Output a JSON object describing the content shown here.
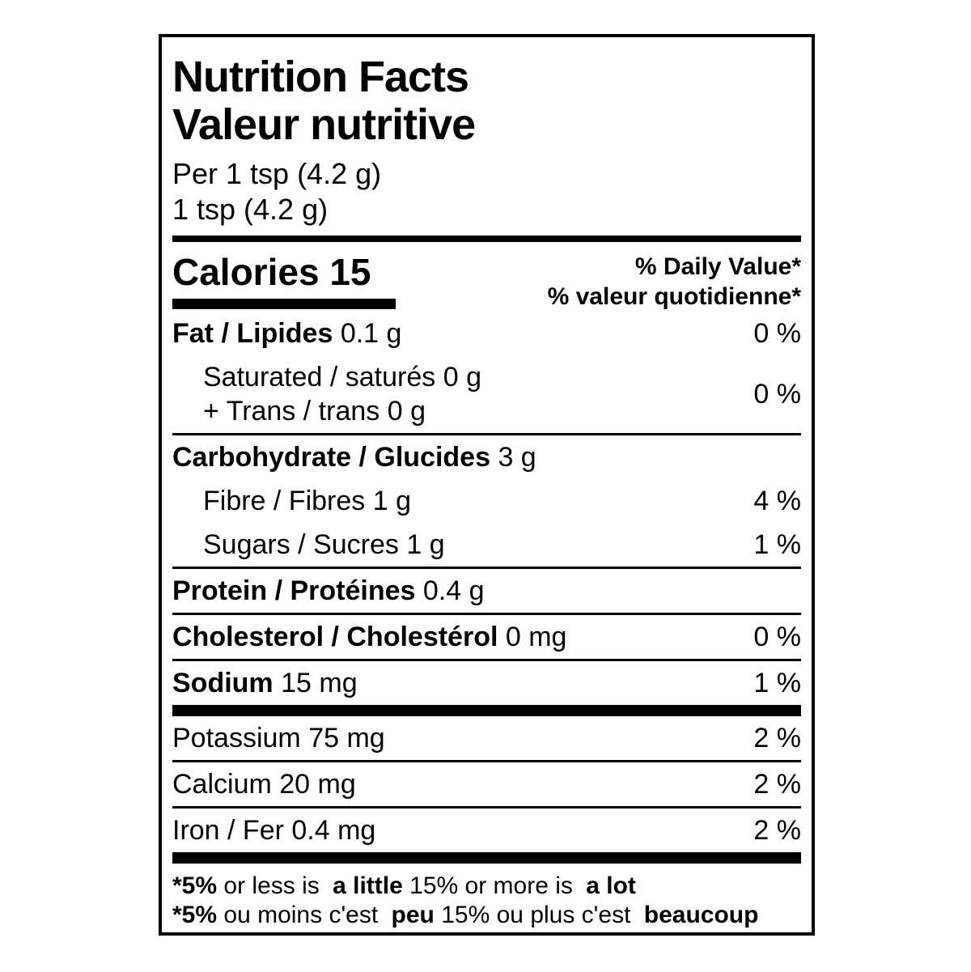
{
  "label": {
    "title_en": "Nutrition Facts",
    "title_fr": "Valeur nutritive",
    "serving_per": "Per 1 tsp (4.2 g)",
    "serving_size": "1 tsp (4.2 g)",
    "calories": {
      "label": "Calories",
      "value": "15"
    },
    "dv_header_en": "% Daily Value*",
    "dv_header_fr": "% valeur quotidienne*",
    "rows": [
      {
        "name": "Fat / Lipides",
        "amount": "0.1 g",
        "dv": "0 %"
      },
      {
        "name": "Carbohydrate / Glucides",
        "amount": "3 g"
      },
      {
        "name": "Fibre / Fibres",
        "amount": "1 g",
        "dv": "4 %"
      },
      {
        "name": "Sugars / Sucres",
        "amount": "1 g",
        "dv": "1 %"
      },
      {
        "name": "Protein / Protéines",
        "amount": "0.4 g"
      },
      {
        "name": "Cholesterol / Cholestérol",
        "amount": "0 mg",
        "dv": "0 %"
      },
      {
        "name": "Sodium",
        "amount": "15 mg",
        "dv": "1 %"
      },
      {
        "name": "Potassium",
        "amount": "75 mg",
        "dv": "2 %"
      },
      {
        "name": "Calcium",
        "amount": "20 mg",
        "dv": "2 %"
      },
      {
        "name": "Iron / Fer",
        "amount": "0.4 mg",
        "dv": "2 %"
      }
    ],
    "sat_trans_group": {
      "line1": "Saturated / saturés 0 g",
      "line2": "+ Trans / trans 0 g",
      "dv": "0 %"
    },
    "footnote_en": {
      "prefix": "*5%",
      "text1": "or less is",
      "bold1": "a little",
      "text2": "15% or more is",
      "bold2": "a lot"
    },
    "footnote_fr": {
      "prefix": "*5%",
      "text1": "ou moins c'est",
      "bold1": "peu",
      "text2": "15% ou plus c'est",
      "bold2": "beaucoup"
    },
    "colors": {
      "ink": "#000000",
      "background": "#ffffff"
    }
  }
}
